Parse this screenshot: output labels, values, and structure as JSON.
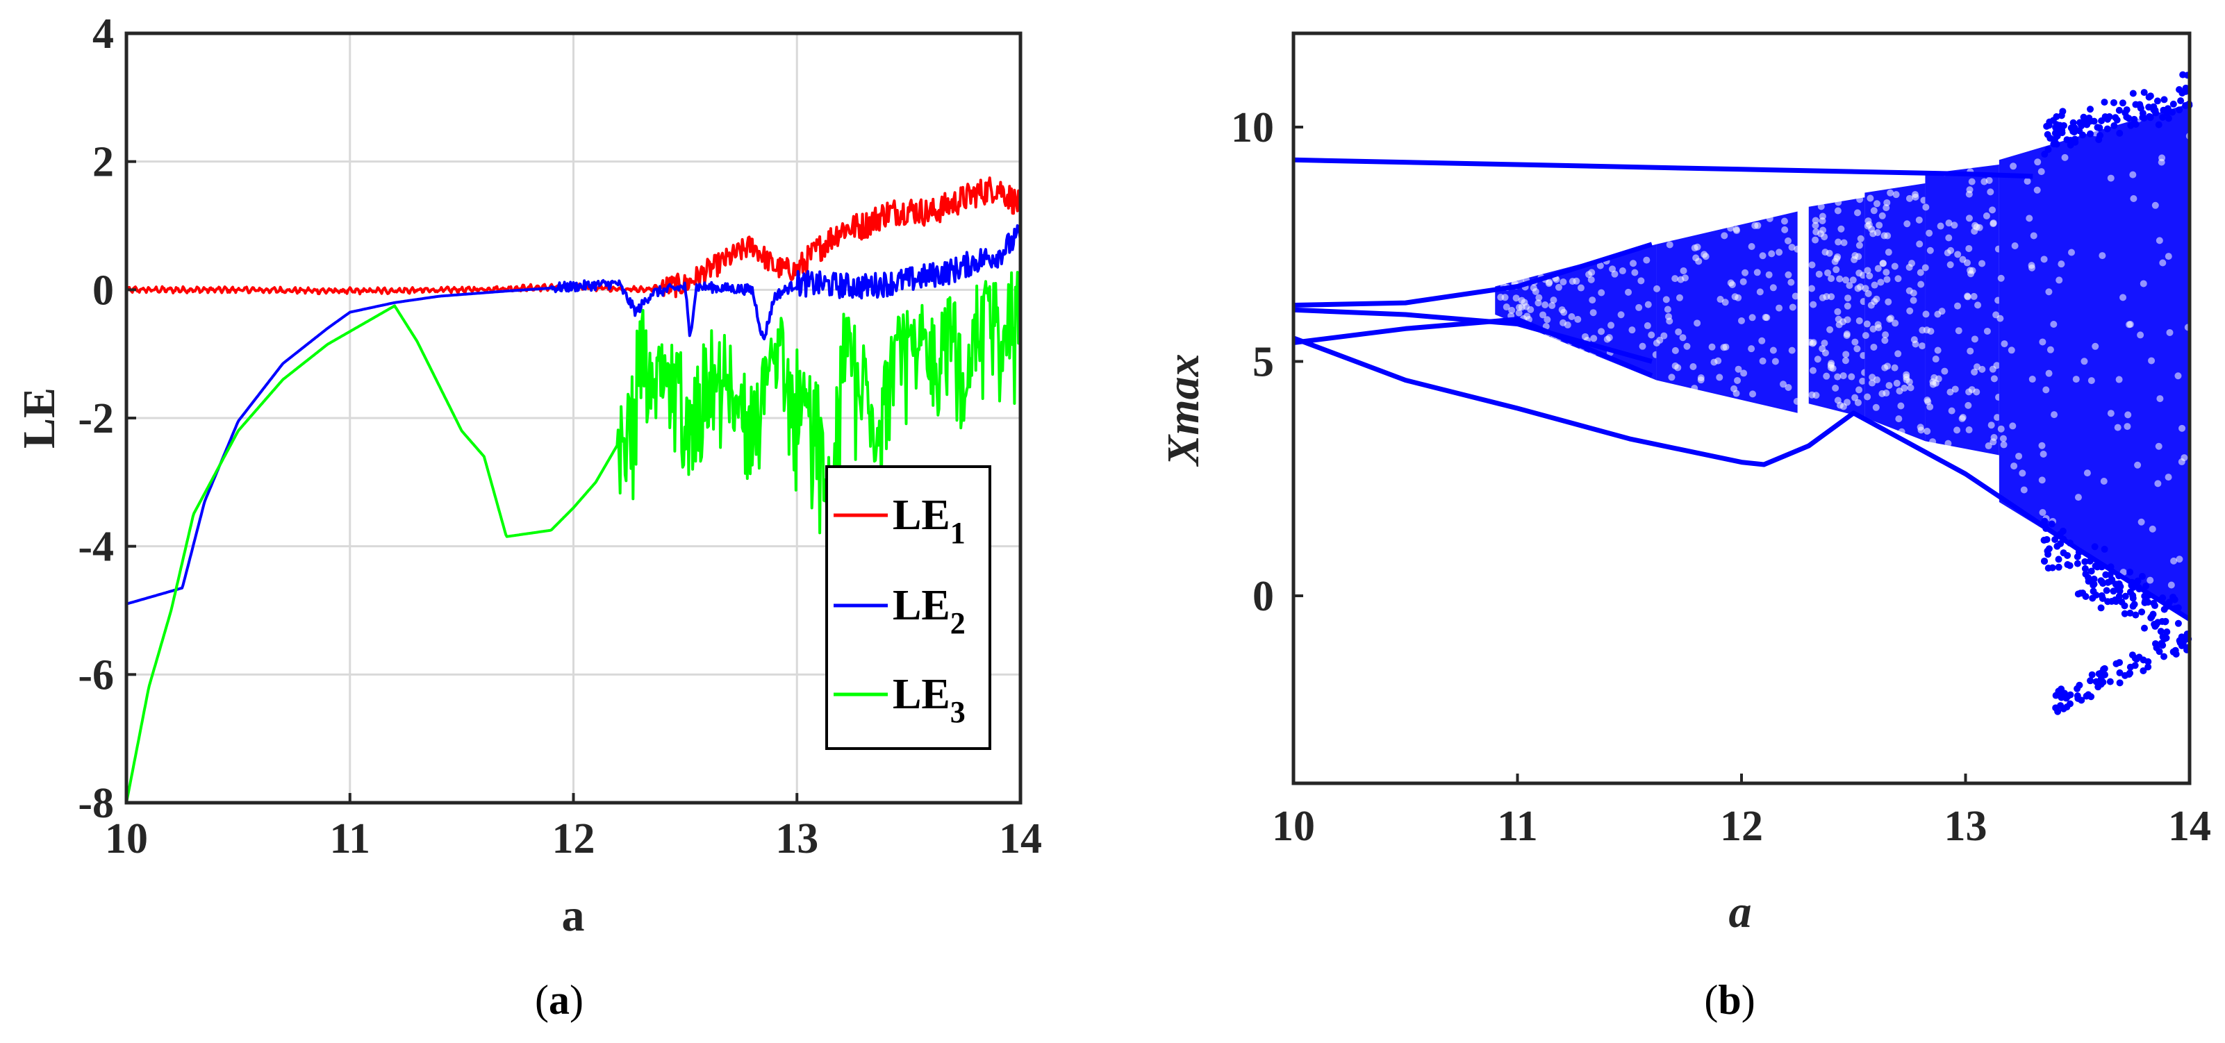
{
  "chart_data": [
    {
      "type": "line",
      "panel": "a",
      "caption_letter": "a",
      "xlabel": "a",
      "ylabel": "LE",
      "xlim": [
        10,
        14
      ],
      "ylim": [
        -8,
        4
      ],
      "xticks": [
        10,
        11,
        12,
        13,
        14
      ],
      "yticks": [
        -8,
        -6,
        -4,
        -2,
        0,
        2,
        4
      ],
      "grid": true,
      "legend_position": "lower-right",
      "series": [
        {
          "name": "LE",
          "subscript": "1",
          "color": "#ff0000",
          "x": [
            10.0,
            10.5,
            11.0,
            11.5,
            12.0,
            12.3,
            12.5,
            12.6,
            12.7,
            12.8,
            12.9,
            13.0,
            13.1,
            13.2,
            13.3,
            13.4,
            13.5,
            13.6,
            13.7,
            13.8,
            13.9,
            14.0
          ],
          "y": [
            0.0,
            0.0,
            -0.02,
            0.0,
            0.05,
            0.0,
            0.08,
            0.3,
            0.5,
            0.7,
            0.35,
            0.3,
            0.65,
            0.95,
            1.0,
            1.2,
            1.25,
            1.2,
            1.35,
            1.5,
            1.6,
            1.3
          ]
        },
        {
          "name": "LE",
          "subscript": "2",
          "color": "#0000ff",
          "x": [
            10.0,
            10.15,
            10.25,
            10.35,
            10.5,
            10.7,
            10.9,
            11.0,
            11.2,
            11.4,
            11.7,
            12.0,
            12.2,
            12.28,
            12.35,
            12.5,
            12.52,
            12.55,
            12.8,
            12.85,
            12.9,
            13.0,
            13.3,
            13.5,
            13.7,
            13.8,
            13.9,
            14.0
          ],
          "y": [
            -4.9,
            -4.75,
            -4.65,
            -3.3,
            -2.05,
            -1.15,
            -0.6,
            -0.35,
            -0.2,
            -0.1,
            -0.02,
            0.05,
            0.1,
            -0.35,
            -0.05,
            0.05,
            -0.75,
            0.05,
            0.0,
            -0.8,
            -0.1,
            0.1,
            0.05,
            0.15,
            0.3,
            0.45,
            0.55,
            0.85
          ]
        },
        {
          "name": "LE",
          "subscript": "3",
          "color": "#00ff00",
          "x": [
            10.0,
            10.1,
            10.2,
            10.3,
            10.5,
            10.7,
            10.9,
            11.1,
            11.2,
            11.3,
            11.4,
            11.5,
            11.55,
            11.6,
            11.7,
            11.8,
            11.9,
            12.0,
            12.1,
            12.2,
            12.25,
            12.3,
            12.35,
            12.4,
            12.5,
            12.55,
            12.6,
            12.7,
            12.8,
            12.9,
            13.0,
            13.1,
            13.15,
            13.2,
            13.3,
            13.35,
            13.4,
            13.5,
            13.6,
            13.7,
            13.75,
            13.8,
            13.9,
            14.0
          ],
          "y": [
            -8.0,
            -6.2,
            -5.0,
            -3.5,
            -2.2,
            -1.4,
            -0.85,
            -0.45,
            -0.25,
            -0.8,
            -1.5,
            -2.2,
            -2.4,
            -2.6,
            -3.85,
            -3.8,
            -3.75,
            -3.4,
            -3.0,
            -2.4,
            -1.9,
            -0.7,
            -1.2,
            -1.4,
            -1.3,
            -1.7,
            -0.8,
            -1.2,
            -2.0,
            -0.6,
            -1.4,
            -2.0,
            -3.2,
            -0.9,
            -1.0,
            -2.6,
            -0.8,
            -0.6,
            -0.9,
            -0.3,
            -1.4,
            -0.4,
            -0.3,
            -0.2
          ]
        }
      ]
    },
    {
      "type": "scatter",
      "panel": "b",
      "caption_letter": "b",
      "xlabel": "a",
      "ylabel": "Xmax",
      "xlim": [
        10,
        14
      ],
      "ylim": [
        -4,
        12
      ],
      "xticks": [
        10,
        11,
        12,
        13,
        14
      ],
      "yticks": [
        0,
        5,
        10
      ],
      "grid": false,
      "color": "#0000ff",
      "branches": [
        {
          "x": [
            10.0,
            11.0,
            12.0,
            13.0,
            13.3
          ],
          "y": [
            9.3,
            9.2,
            9.1,
            9.0,
            8.95
          ]
        },
        {
          "x": [
            10.0,
            10.5,
            11.0,
            11.5,
            12.0,
            12.1,
            12.3,
            12.5,
            13.0,
            13.5,
            14.0
          ],
          "y": [
            5.5,
            4.6,
            4.0,
            3.35,
            2.85,
            2.8,
            3.2,
            3.9,
            2.6,
            1.0,
            -0.5
          ]
        },
        {
          "x": [
            10.0,
            10.5,
            11.0,
            11.6
          ],
          "y": [
            6.2,
            6.25,
            6.6,
            7.5
          ]
        },
        {
          "x": [
            10.0,
            10.5,
            11.0,
            11.6
          ],
          "y": [
            6.1,
            6.0,
            5.8,
            5.0
          ]
        },
        {
          "x": [
            10.0,
            10.5,
            11.0,
            11.6
          ],
          "y": [
            5.4,
            5.7,
            5.9,
            4.7
          ]
        }
      ],
      "bands": [
        {
          "x0": 10.9,
          "x1": 11.62,
          "ytop0": 6.6,
          "ytop1": 7.5,
          "ybot0": 6.0,
          "ybot1": 4.6
        },
        {
          "x0": 11.62,
          "x1": 12.25,
          "ytop0": 7.5,
          "ytop1": 8.2,
          "ybot0": 4.6,
          "ybot1": 3.9
        },
        {
          "x0": 12.3,
          "x1": 12.55,
          "ytop0": 8.3,
          "ytop1": 8.5,
          "ybot0": 4.1,
          "ybot1": 3.8
        },
        {
          "x0": 12.55,
          "x1": 12.82,
          "ytop0": 8.6,
          "ytop1": 8.8,
          "ybot0": 3.8,
          "ybot1": 3.3
        },
        {
          "x0": 12.82,
          "x1": 13.15,
          "ytop0": 9.0,
          "ytop1": 9.2,
          "ybot0": 3.3,
          "ybot1": 3.0
        },
        {
          "x0": 13.15,
          "x1": 14.0,
          "ytop0": 9.3,
          "ytop1": 10.5,
          "ybot0": 2.0,
          "ybot1": -0.5
        }
      ],
      "outlier_cluster": {
        "x": [
          13.4,
          14.0
        ],
        "y": [
          -2.3,
          -0.9
        ]
      }
    }
  ]
}
